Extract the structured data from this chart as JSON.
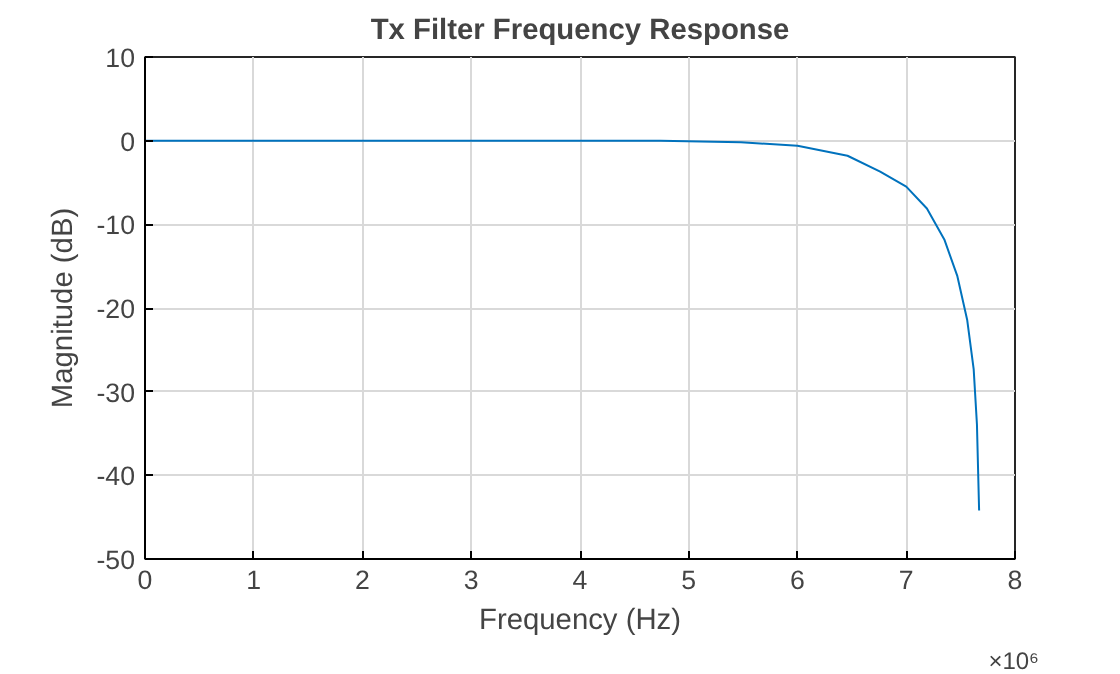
{
  "chart_data": {
    "type": "line",
    "title": "Tx Filter Frequency Response",
    "xlabel": "Frequency (Hz)",
    "ylabel": "Magnitude (dB)",
    "series": [
      {
        "color": "#0072bd",
        "x": [
          0,
          1,
          2,
          3,
          4,
          4.74,
          5.48,
          6,
          6.46,
          6.76,
          7,
          7.19,
          7.35,
          7.47,
          7.56,
          7.62,
          7.65,
          7.67
        ],
        "values": [
          0,
          0,
          0,
          0,
          0,
          0,
          -0.2,
          -0.6,
          -1.8,
          -3.7,
          -5.5,
          -8.1,
          -11.8,
          -16.2,
          -21.4,
          -27.3,
          -33.9,
          -44.2
        ]
      }
    ],
    "xlim": [
      0,
      8
    ],
    "ylim": [
      -50,
      10
    ],
    "xticks": [
      0,
      1,
      2,
      3,
      4,
      5,
      6,
      7,
      8
    ],
    "yticks": [
      -50,
      -40,
      -30,
      -20,
      -10,
      0,
      10
    ],
    "annotations": [
      "×10⁶"
    ],
    "grid": true,
    "line_style": "solid",
    "marker": "none"
  }
}
